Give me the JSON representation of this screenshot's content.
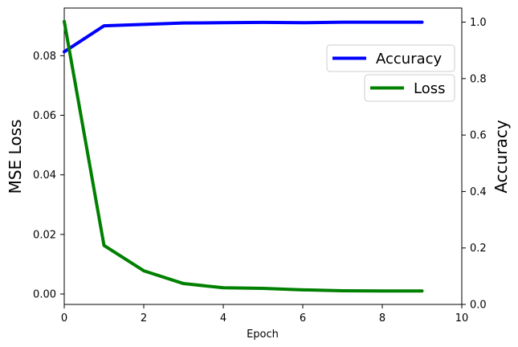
{
  "chart_data": {
    "type": "line",
    "xlabel": "Epoch",
    "ylabel_left": "MSE Loss",
    "ylabel_right": "Accuracy",
    "xlim": [
      0,
      10
    ],
    "ylim_left": [
      -0.0035,
      0.096
    ],
    "ylim_right": [
      0,
      1.05
    ],
    "x_ticks": [
      "0",
      "2",
      "4",
      "6",
      "8",
      "10"
    ],
    "y_left_ticks": [
      "0.00",
      "0.02",
      "0.04",
      "0.06",
      "0.08"
    ],
    "y_right_ticks": [
      "0.0",
      "0.2",
      "0.4",
      "0.6",
      "0.8",
      "1.0"
    ],
    "grid": false,
    "x": [
      0,
      1,
      2,
      3,
      4,
      5,
      6,
      7,
      8,
      9
    ],
    "series": [
      {
        "name": "Accuracy",
        "axis": "right",
        "color": "#0000ff",
        "values": [
          0.895,
          0.987,
          0.992,
          0.997,
          0.998,
          0.999,
          0.998,
          1.0,
          1.0,
          1.0
        ]
      },
      {
        "name": "Loss",
        "axis": "left",
        "color": "#008000",
        "values": [
          0.0915,
          0.0163,
          0.0078,
          0.0035,
          0.0021,
          0.0019,
          0.0014,
          0.0011,
          0.001,
          0.001
        ]
      }
    ],
    "legend": [
      {
        "label": "Accuracy",
        "color": "#0000ff",
        "placement": "upper-right"
      },
      {
        "label": "Loss",
        "color": "#008000",
        "placement": "upper-right"
      }
    ]
  }
}
